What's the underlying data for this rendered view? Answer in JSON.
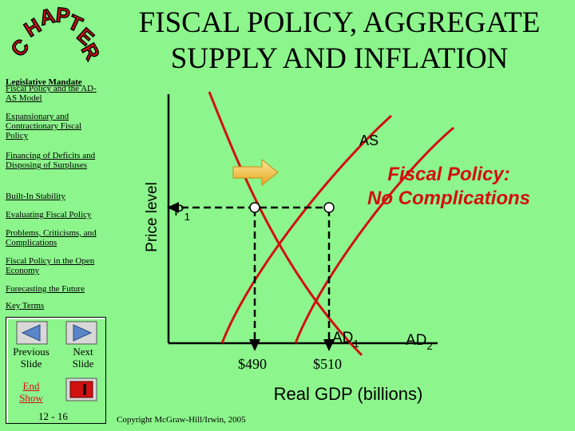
{
  "slide": {
    "title_line1": "FISCAL POLICY, AGGREGATE",
    "title_line2": "SUPPLY AND INFLATION",
    "logo_text": "CHAPTER",
    "copyright": "Copyright McGraw-Hill/Irwin, 2005"
  },
  "nav": {
    "items": [
      "Legislative Mandate",
      "Fiscal Policy and the AD-AS Model",
      "Expansionary and Contractionary Fiscal Policy",
      "Financing of Deficits and Disposing of Surpluses",
      "Built-In Stability",
      "Evaluating Fiscal Policy",
      "Problems, Criticisms, and Complications",
      "Fiscal Policy in the Open Economy",
      "Forecasting the Future",
      "Key Terms"
    ],
    "previous_label": "Previous Slide",
    "next_label": "Next Slide",
    "end_label": "End Show",
    "page_number": "12 - 16"
  },
  "graph": {
    "y_axis_label": "Price level",
    "x_axis_label": "Real GDP (billions)",
    "as_label": "AS",
    "ad1_label": "AD",
    "ad1_sub": "1",
    "ad2_label": "AD",
    "ad2_sub": "2",
    "price_label": "P",
    "price_sub": "1",
    "gdp_value_1": "$490",
    "gdp_value_2": "$510",
    "annotation_line1": "Fiscal Policy:",
    "annotation_line2": "No Complications",
    "colors": {
      "curve": "#d21010",
      "annotation": "#d21010",
      "arrow": "#f7c84a",
      "dot": "#ffffff"
    }
  }
}
